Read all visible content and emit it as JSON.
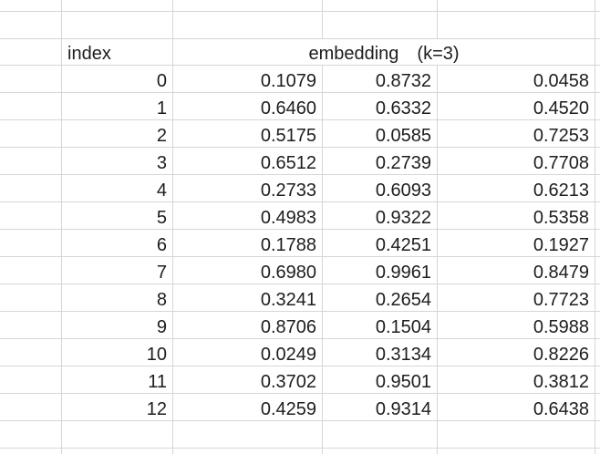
{
  "colors": {
    "background": "#ffffff",
    "gridline": "#d6d6d6",
    "text": "#1d1d1d"
  },
  "table": {
    "index_header": "index",
    "embedding_header": "embedding　(k=3)",
    "rows": [
      {
        "index": "0",
        "v1": "0.1079",
        "v2": "0.8732",
        "v3": "0.0458"
      },
      {
        "index": "1",
        "v1": "0.6460",
        "v2": "0.6332",
        "v3": "0.4520"
      },
      {
        "index": "2",
        "v1": "0.5175",
        "v2": "0.0585",
        "v3": "0.7253"
      },
      {
        "index": "3",
        "v1": "0.6512",
        "v2": "0.2739",
        "v3": "0.7708"
      },
      {
        "index": "4",
        "v1": "0.2733",
        "v2": "0.6093",
        "v3": "0.6213"
      },
      {
        "index": "5",
        "v1": "0.4983",
        "v2": "0.9322",
        "v3": "0.5358"
      },
      {
        "index": "6",
        "v1": "0.1788",
        "v2": "0.4251",
        "v3": "0.1927"
      },
      {
        "index": "7",
        "v1": "0.6980",
        "v2": "0.9961",
        "v3": "0.8479"
      },
      {
        "index": "8",
        "v1": "0.3241",
        "v2": "0.2654",
        "v3": "0.7723"
      },
      {
        "index": "9",
        "v1": "0.8706",
        "v2": "0.1504",
        "v3": "0.5988"
      },
      {
        "index": "10",
        "v1": "0.0249",
        "v2": "0.3134",
        "v3": "0.8226"
      },
      {
        "index": "11",
        "v1": "0.3702",
        "v2": "0.9501",
        "v3": "0.3812"
      },
      {
        "index": "12",
        "v1": "0.4259",
        "v2": "0.9314",
        "v3": "0.6438"
      }
    ]
  }
}
